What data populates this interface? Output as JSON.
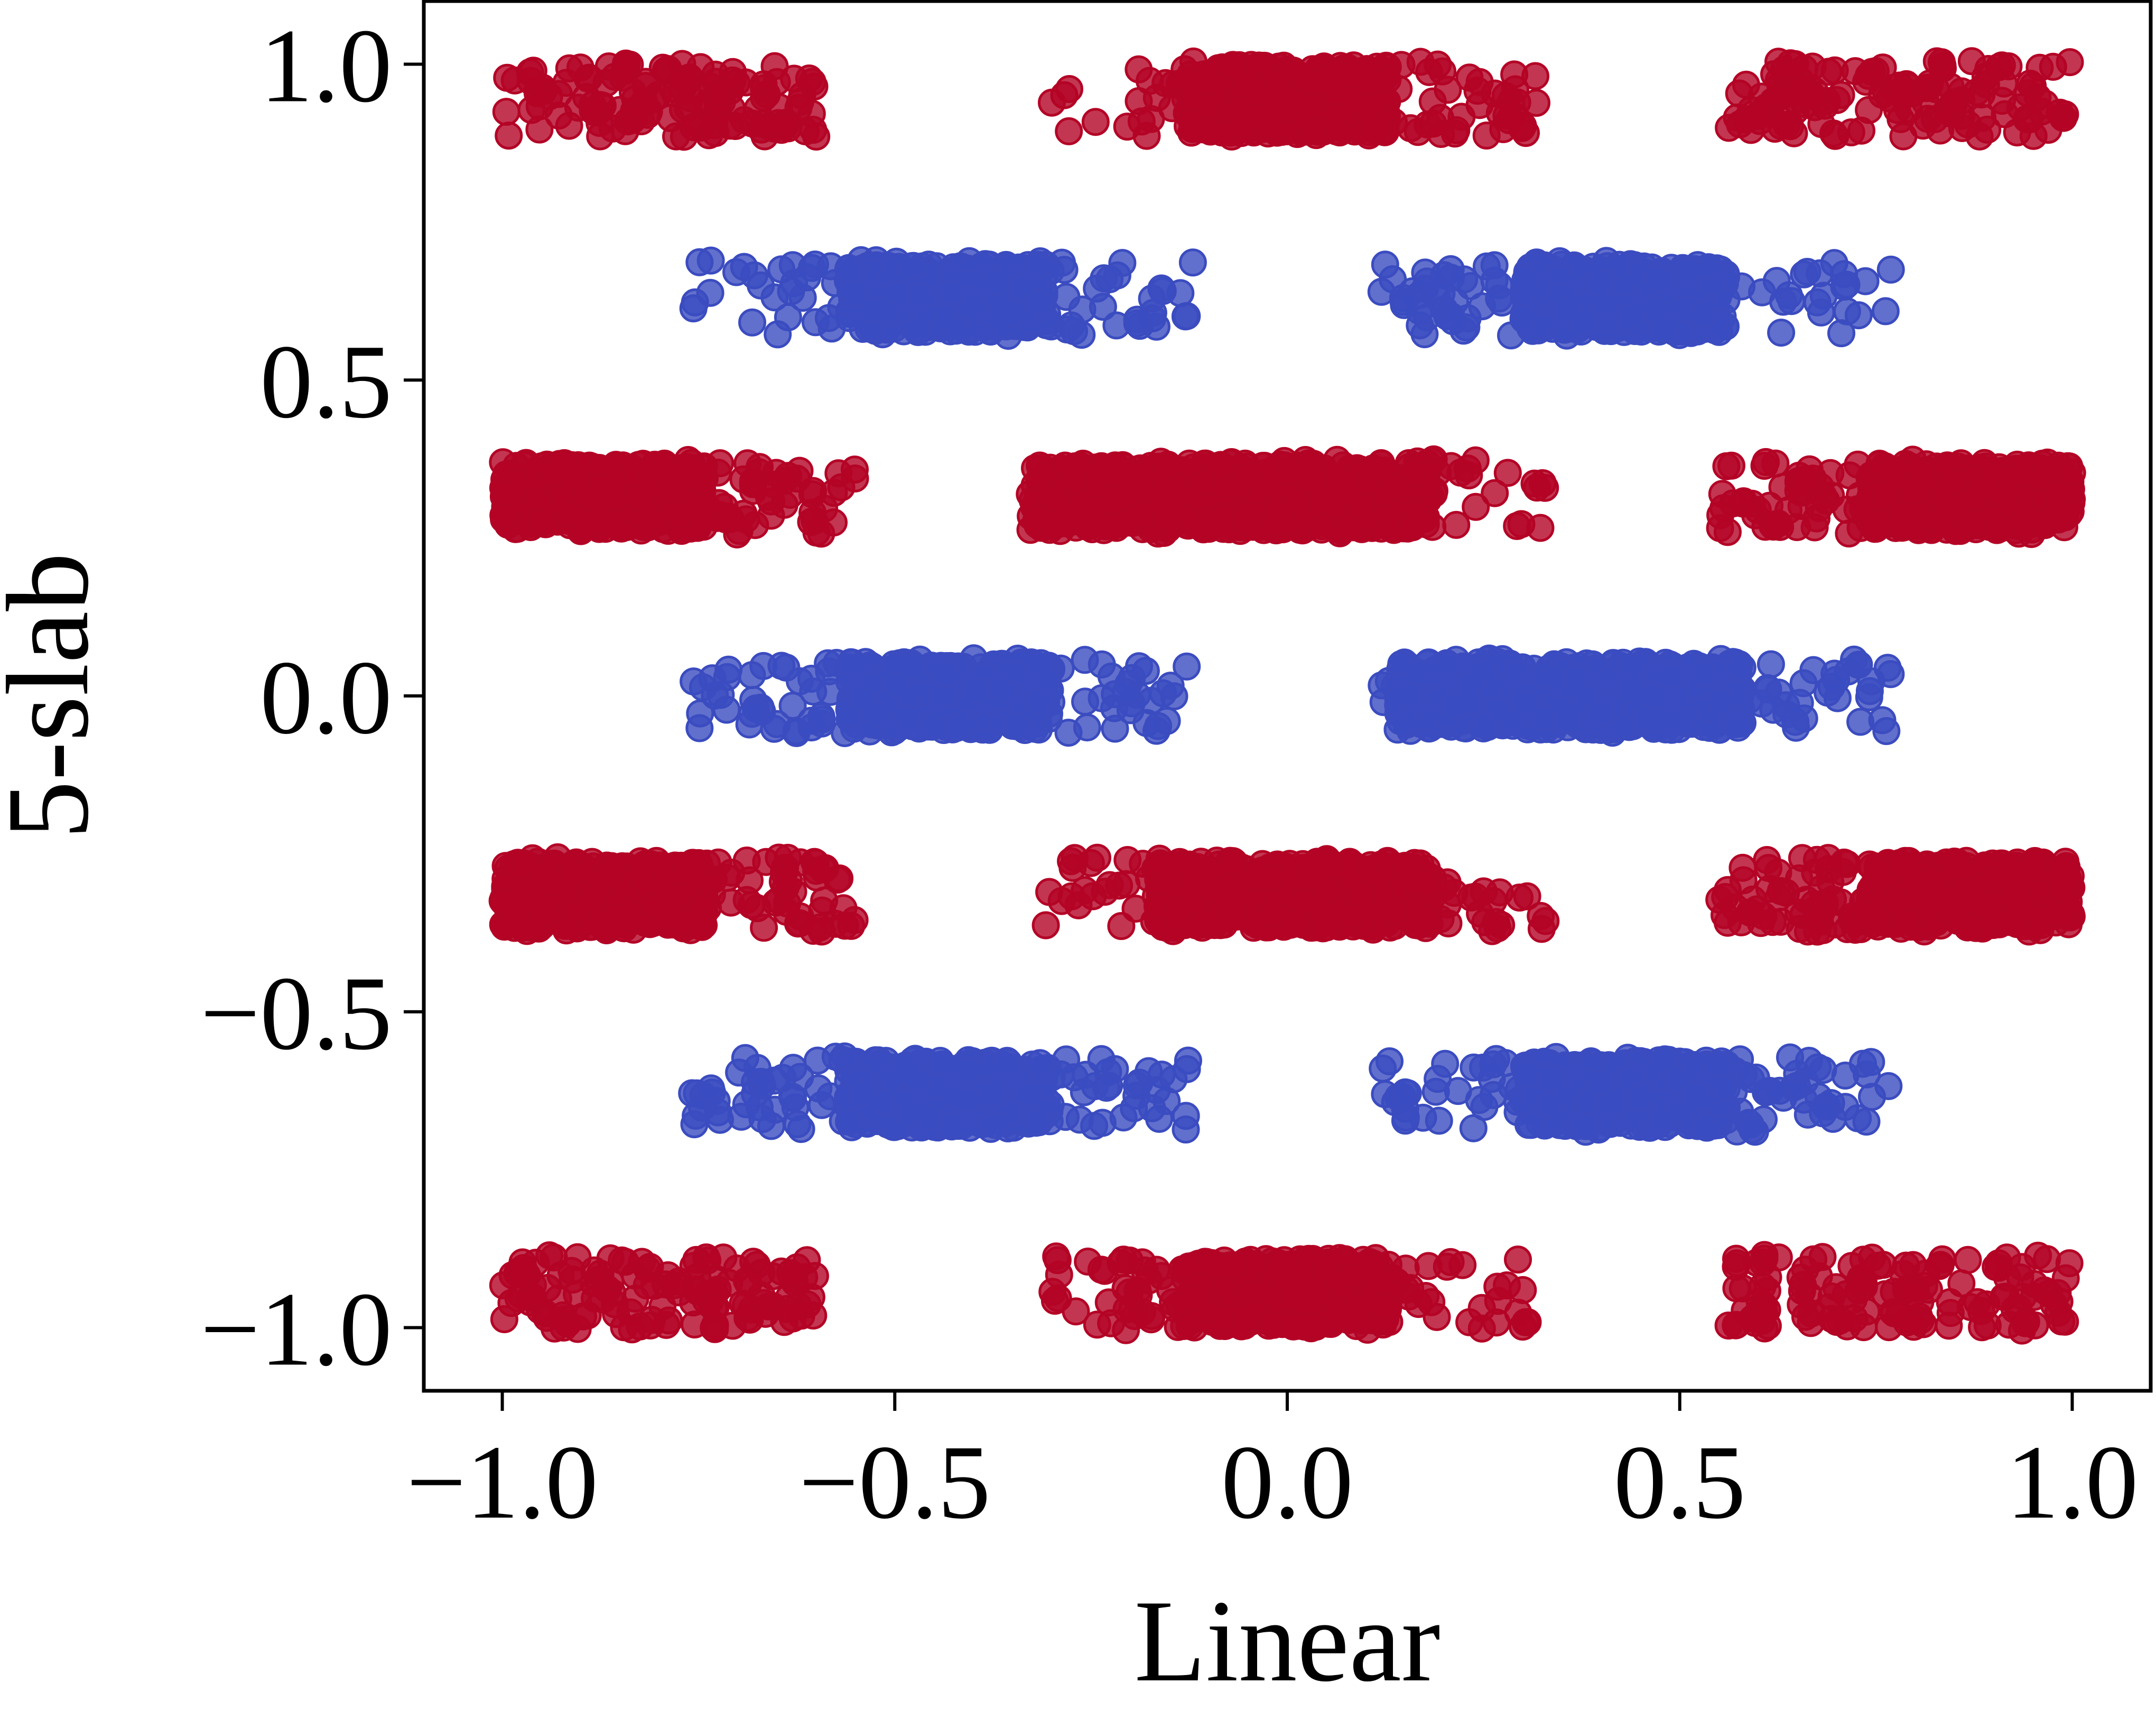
{
  "chart_data": {
    "type": "scatter",
    "title": "",
    "xlabel": "Linear",
    "ylabel": "5-slab",
    "xlim": [
      -1.1,
      1.1
    ],
    "ylim": [
      -1.1,
      1.1
    ],
    "xticks": [
      -1.0,
      -0.5,
      0.0,
      0.5,
      1.0
    ],
    "yticks": [
      -1.0,
      -0.5,
      0.0,
      0.5,
      1.0
    ],
    "xtick_labels": [
      "−1.0",
      "−0.5",
      "0.0",
      "0.5",
      "1.0"
    ],
    "ytick_labels": [
      "−1.0",
      "−0.5",
      "0.0",
      "0.5",
      "1.0"
    ],
    "grid": false,
    "legend": "none",
    "colors": {
      "red": "#b40426",
      "blue": "#3b4cc0"
    },
    "clusters": [
      {
        "color": "red",
        "y": 0.945,
        "x": [
          -1.0,
          -0.6
        ],
        "dense": [
          -1.0,
          -0.6
        ],
        "density": "sparse"
      },
      {
        "color": "red",
        "y": 0.945,
        "x": [
          -0.3,
          0.32
        ],
        "dense": [
          -0.13,
          0.13
        ],
        "density": "mixed"
      },
      {
        "color": "red",
        "y": 0.945,
        "x": [
          0.56,
          1.0
        ],
        "dense": [
          0.56,
          1.0
        ],
        "density": "sparse"
      },
      {
        "color": "blue",
        "y": 0.63,
        "x": [
          -0.76,
          -0.12
        ],
        "dense": [
          -0.56,
          -0.3
        ],
        "density": "mixed"
      },
      {
        "color": "blue",
        "y": 0.63,
        "x": [
          0.12,
          0.77
        ],
        "dense": [
          0.3,
          0.56
        ],
        "density": "mixed"
      },
      {
        "color": "red",
        "y": 0.315,
        "x": [
          -1.0,
          -0.55
        ],
        "dense": [
          -1.0,
          -0.74
        ],
        "density": "mixed"
      },
      {
        "color": "red",
        "y": 0.315,
        "x": [
          -0.33,
          0.33
        ],
        "dense": [
          -0.33,
          0.18
        ],
        "density": "mixed"
      },
      {
        "color": "red",
        "y": 0.315,
        "x": [
          0.55,
          1.0
        ],
        "dense": [
          0.74,
          1.0
        ],
        "density": "mixed"
      },
      {
        "color": "blue",
        "y": 0.0,
        "x": [
          -0.76,
          -0.12
        ],
        "dense": [
          -0.56,
          -0.3
        ],
        "density": "mixed"
      },
      {
        "color": "blue",
        "y": 0.0,
        "x": [
          0.12,
          0.77
        ],
        "dense": [
          0.14,
          0.58
        ],
        "density": "mixed"
      },
      {
        "color": "red",
        "y": -0.315,
        "x": [
          -1.0,
          -0.55
        ],
        "dense": [
          -1.0,
          -0.74
        ],
        "density": "mixed"
      },
      {
        "color": "red",
        "y": -0.315,
        "x": [
          -0.33,
          0.33
        ],
        "dense": [
          -0.17,
          0.18
        ],
        "density": "mixed"
      },
      {
        "color": "red",
        "y": -0.315,
        "x": [
          0.55,
          1.0
        ],
        "dense": [
          0.74,
          1.0
        ],
        "density": "mixed"
      },
      {
        "color": "blue",
        "y": -0.63,
        "x": [
          -0.76,
          -0.12
        ],
        "dense": [
          -0.56,
          -0.3
        ],
        "density": "mixed"
      },
      {
        "color": "blue",
        "y": -0.63,
        "x": [
          0.12,
          0.77
        ],
        "dense": [
          0.3,
          0.56
        ],
        "density": "mixed"
      },
      {
        "color": "red",
        "y": -0.945,
        "x": [
          -1.0,
          -0.6
        ],
        "dense": [
          -1.0,
          -0.6
        ],
        "density": "sparse"
      },
      {
        "color": "red",
        "y": -0.945,
        "x": [
          -0.3,
          0.32
        ],
        "dense": [
          -0.13,
          0.13
        ],
        "density": "mixed"
      },
      {
        "color": "red",
        "y": -0.945,
        "x": [
          0.56,
          1.0
        ],
        "dense": [
          0.56,
          1.0
        ],
        "density": "sparse"
      }
    ]
  }
}
